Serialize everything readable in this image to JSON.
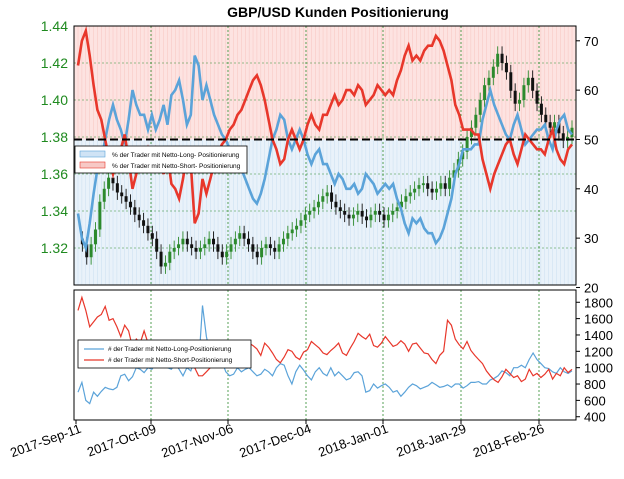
{
  "chart_data": [
    {
      "type": "candlestick",
      "panel": "price",
      "title": "GBP/USD Kunden Positionierung",
      "left_axis": {
        "ticks": [
          1.32,
          1.34,
          1.36,
          1.38,
          1.4,
          1.42,
          1.44
        ],
        "labels": [
          "1.32",
          "1.34",
          "1.36",
          "1.38",
          "1.40",
          "1.42",
          "1.44"
        ],
        "range": [
          1.3,
          1.44
        ],
        "color": "#1f8a1f"
      },
      "right_axis": {
        "ticks": [
          20,
          30,
          40,
          50,
          60,
          70
        ],
        "labels": [
          "20",
          "30",
          "40",
          "50",
          "60",
          "70"
        ],
        "range": [
          20.5,
          73
        ]
      },
      "dashed_line_value": 50,
      "x_tick_labels": [
        "2017-Sep-11",
        "2017-Oct-09",
        "2017-Nov-06",
        "2017-Dec-04",
        "2018-Jan-01",
        "2018-Jan-29",
        "2018-Feb-26"
      ],
      "legend": {
        "position": "left-middle",
        "entries": [
          {
            "label": "% der Trader mit Netto-Long- Positionierung",
            "color": "#5ba3d9",
            "fill": "#cfe3f5"
          },
          {
            "label": "% der Trader mit Netto-Short- Positionierung",
            "color": "#e8372b",
            "fill": "#f7c9c6"
          }
        ]
      },
      "series": [
        {
          "name": "GBP/USD close",
          "values": [
            1.325,
            1.322,
            1.315,
            1.322,
            1.33,
            1.345,
            1.352,
            1.358,
            1.355,
            1.35,
            1.348,
            1.345,
            1.342,
            1.338,
            1.335,
            1.332,
            1.328,
            1.325,
            1.318,
            1.31,
            1.312,
            1.318,
            1.32,
            1.322,
            1.325,
            1.322,
            1.32,
            1.318,
            1.32,
            1.322,
            1.325,
            1.322,
            1.318,
            1.315,
            1.318,
            1.322,
            1.325,
            1.328,
            1.325,
            1.322,
            1.318,
            1.315,
            1.32,
            1.322,
            1.32,
            1.318,
            1.322,
            1.325,
            1.328,
            1.33,
            1.332,
            1.335,
            1.338,
            1.34,
            1.342,
            1.345,
            1.348,
            1.35,
            1.345,
            1.342,
            1.34,
            1.338,
            1.336,
            1.338,
            1.34,
            1.337,
            1.335,
            1.338,
            1.34,
            1.338,
            1.335,
            1.338,
            1.34,
            1.342,
            1.345,
            1.348,
            1.35,
            1.352,
            1.354,
            1.355,
            1.352,
            1.35,
            1.352,
            1.355,
            1.352,
            1.358,
            1.362,
            1.368,
            1.372,
            1.38,
            1.385,
            1.392,
            1.4,
            1.408,
            1.412,
            1.418,
            1.425,
            1.42,
            1.415,
            1.405,
            1.398,
            1.4,
            1.408,
            1.412,
            1.405,
            1.398,
            1.392,
            1.388,
            1.385,
            1.388,
            1.382,
            1.378,
            1.38,
            1.385
          ]
        },
        {
          "name": "% der Trader mit Netto-Long- Positionierung",
          "color": "#5ba3d9",
          "values": [
            35,
            30,
            28,
            33,
            39,
            44,
            46,
            50,
            54,
            57,
            54,
            52,
            49,
            54,
            60,
            57,
            55,
            55,
            52,
            55,
            52,
            54,
            57,
            53,
            59,
            60,
            62,
            58,
            53,
            55,
            67,
            65,
            58,
            61,
            58,
            55,
            53,
            51,
            50,
            48,
            47,
            45,
            44,
            42,
            40,
            38,
            37,
            39,
            42,
            46,
            50,
            52,
            55,
            54,
            50,
            48,
            50,
            52,
            50,
            47,
            45,
            47,
            48,
            45,
            45,
            43,
            41,
            43,
            42,
            40,
            40,
            41,
            39,
            40,
            43,
            42,
            41,
            39,
            40,
            41,
            40,
            41,
            38,
            36,
            33,
            31,
            34,
            33,
            34,
            32,
            31,
            31,
            29,
            30,
            32,
            35,
            38,
            43,
            45,
            48,
            48,
            48,
            49,
            49,
            54,
            57,
            60,
            57,
            55,
            53,
            51,
            50,
            53,
            55,
            52,
            49,
            50,
            51,
            52,
            52,
            53,
            50,
            48,
            52,
            54,
            55,
            52,
            51
          ]
        },
        {
          "name": "% der Trader mit Netto-Short- Positionierung",
          "color": "#e8372b",
          "values": [
            65,
            70,
            72,
            67,
            61,
            56,
            54,
            50,
            46,
            43,
            46,
            48,
            51,
            46,
            40,
            43,
            45,
            45,
            48,
            45,
            48,
            46,
            43,
            47,
            41,
            40,
            38,
            42,
            47,
            45,
            33,
            35,
            42,
            39,
            42,
            45,
            47,
            49,
            50,
            52,
            53,
            55,
            56,
            58,
            60,
            62,
            63,
            61,
            58,
            54,
            50,
            48,
            45,
            46,
            50,
            52,
            50,
            48,
            50,
            53,
            55,
            53,
            52,
            55,
            55,
            57,
            59,
            57,
            58,
            60,
            60,
            59,
            61,
            60,
            57,
            58,
            59,
            61,
            60,
            59,
            60,
            59,
            62,
            64,
            67,
            69,
            66,
            67,
            66,
            68,
            69,
            69,
            71,
            70,
            68,
            65,
            62,
            57,
            55,
            52,
            52,
            52,
            51,
            51,
            46,
            43,
            40,
            43,
            45,
            47,
            49,
            50,
            47,
            45,
            48,
            51,
            50,
            49,
            48,
            48,
            47,
            50,
            52,
            48,
            46,
            45,
            48,
            49
          ]
        }
      ]
    },
    {
      "type": "line",
      "panel": "trader-count",
      "right_axis": {
        "ticks": [
          400,
          600,
          800,
          1000,
          1200,
          1400,
          1600,
          1800
        ],
        "labels": [
          "400",
          "600",
          "800",
          "1000",
          "1200",
          "1400",
          "1600",
          "1800"
        ],
        "range": [
          360,
          1950
        ]
      },
      "legend": {
        "position": "left-middle",
        "entries": [
          {
            "label": "# der Trader mit Netto-Long-Positionierung",
            "color": "#5ba3d9"
          },
          {
            "label": "# der Trader mit Netto-Short-Positionierung",
            "color": "#e8372b"
          }
        ]
      },
      "series": [
        {
          "name": "# der Trader mit Netto-Long-Positionierung",
          "color": "#5ba3d9",
          "values": [
            700,
            820,
            600,
            560,
            700,
            650,
            710,
            760,
            740,
            730,
            760,
            900,
            920,
            840,
            890,
            1000,
            980,
            940,
            1000,
            980,
            1050,
            1090,
            1100,
            1000,
            980,
            1050,
            980,
            900,
            1000,
            960,
            1100,
            1020,
            1760,
            1380,
            1150,
            1100,
            1180,
            1080,
            950,
            900,
            920,
            1000,
            950,
            980,
            1000,
            950,
            900,
            920,
            980,
            950,
            900,
            1000,
            1050,
            1030,
            900,
            800,
            950,
            1030,
            970,
            900,
            850,
            950,
            1000,
            930,
            900,
            1000,
            900,
            950,
            900,
            850,
            870,
            940,
            950,
            900,
            700,
            720,
            800,
            750,
            780,
            800,
            760,
            700,
            720,
            650,
            700,
            760,
            800,
            780,
            740,
            760,
            780,
            820,
            790,
            760,
            770,
            790,
            760,
            800,
            800,
            750,
            780,
            820,
            820,
            830,
            800,
            800,
            850,
            870,
            900,
            960,
            940,
            900,
            1000,
            1000,
            1030,
            1000,
            1100,
            1180,
            1100,
            1050,
            1000,
            990,
            950,
            930,
            1000,
            950,
            930,
            960
          ]
        },
        {
          "name": "# der Trader mit Netto-Short-Positionierung",
          "color": "#e8372b",
          "values": [
            1700,
            1860,
            1700,
            1500,
            1560,
            1620,
            1650,
            1750,
            1580,
            1600,
            1500,
            1380,
            1520,
            1450,
            1250,
            1350,
            1300,
            1450,
            1300,
            1180,
            1320,
            1250,
            1080,
            1200,
            1150,
            1180,
            1000,
            1050,
            1160,
            1100,
            1000,
            900,
            900,
            950,
            1000,
            1050,
            1100,
            1150,
            1080,
            1140,
            1200,
            1230,
            1170,
            1200,
            1300,
            1270,
            1230,
            1150,
            1300,
            1250,
            1180,
            1100,
            1060,
            1130,
            1220,
            1200,
            1130,
            1100,
            1190,
            1220,
            1320,
            1280,
            1240,
            1180,
            1160,
            1210,
            1250,
            1300,
            1180,
            1150,
            1240,
            1320,
            1420,
            1380,
            1350,
            1410,
            1270,
            1250,
            1300,
            1380,
            1320,
            1260,
            1280,
            1330,
            1290,
            1200,
            1290,
            1300,
            1240,
            1180,
            1170,
            1100,
            1050,
            1150,
            1200,
            1580,
            1520,
            1350,
            1280,
            1230,
            1320,
            1210,
            1150,
            1100,
            1050,
            960,
            900,
            850,
            820,
            890,
            980,
            930,
            880,
            900,
            830,
            860,
            980,
            900,
            930,
            880,
            920,
            980,
            860,
            930,
            900,
            1000,
            940,
            980
          ]
        }
      ]
    }
  ]
}
